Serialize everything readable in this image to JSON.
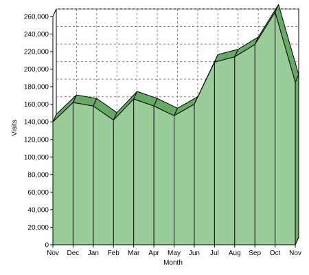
{
  "chart_data": {
    "type": "area",
    "title": "",
    "xlabel": "Month",
    "ylabel": "Visits",
    "categories": [
      "Nov",
      "Dec",
      "Jan",
      "Feb",
      "Mar",
      "Apr",
      "May",
      "Jun",
      "Jul",
      "Aug",
      "Sep",
      "Oct",
      "Nov"
    ],
    "values": [
      140000,
      162000,
      158000,
      142000,
      166000,
      158000,
      147000,
      160000,
      208000,
      214000,
      228000,
      265000,
      185000
    ],
    "ylim": [
      0,
      260000
    ],
    "yticks": [
      0,
      20000,
      40000,
      60000,
      80000,
      100000,
      120000,
      140000,
      160000,
      180000,
      200000,
      220000,
      240000,
      260000
    ],
    "ytick_labels": [
      "0",
      "20,000",
      "40,000",
      "60,000",
      "80,000",
      "100,000",
      "120,000",
      "140,000",
      "160,000",
      "180,000",
      "200,000",
      "220,000",
      "240,000",
      "260,000"
    ],
    "grid": true,
    "style": "3d",
    "colors": {
      "fill": "#99cc99",
      "top": "#66aa66",
      "line": "#000000",
      "grid": "#808080",
      "wall": "#ffffff"
    }
  }
}
